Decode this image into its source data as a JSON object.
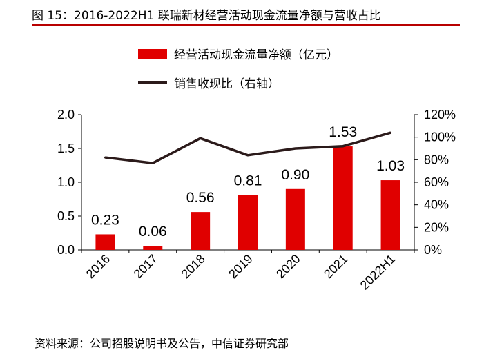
{
  "figure": {
    "title": "图 15：2016-2022H1 联瑞新材经营活动现金流量净额与营收占比",
    "source": "资料来源：公司招股说明书及公告，中信证券研究部"
  },
  "chart_data": {
    "type": "bar+line",
    "categories": [
      "2016",
      "2017",
      "2018",
      "2019",
      "2020",
      "2021",
      "2022H1"
    ],
    "series": [
      {
        "name": "经营活动现金流量净额（亿元）",
        "kind": "bar",
        "axis": "left",
        "color": "#e00000",
        "values": [
          0.23,
          0.06,
          0.56,
          0.81,
          0.9,
          1.53,
          1.03
        ],
        "labels": [
          "0.23",
          "0.06",
          "0.56",
          "0.81",
          "0.90",
          "1.53",
          "1.03"
        ]
      },
      {
        "name": "销售收现比（右轴）",
        "kind": "line",
        "axis": "right",
        "color": "#2b1a1a",
        "values": [
          82,
          77,
          99,
          84,
          90,
          92,
          104
        ]
      }
    ],
    "left_axis": {
      "min": 0,
      "max": 2.0,
      "ticks": [
        "0.0",
        "0.5",
        "1.0",
        "1.5",
        "2.0"
      ],
      "tick_values": [
        0,
        0.5,
        1.0,
        1.5,
        2.0
      ]
    },
    "right_axis": {
      "min": 0,
      "max": 120,
      "ticks": [
        "0%",
        "20%",
        "40%",
        "60%",
        "80%",
        "100%",
        "120%"
      ],
      "tick_values": [
        0,
        20,
        40,
        60,
        80,
        100,
        120
      ]
    },
    "legend_position": "top-center",
    "grid": false
  }
}
